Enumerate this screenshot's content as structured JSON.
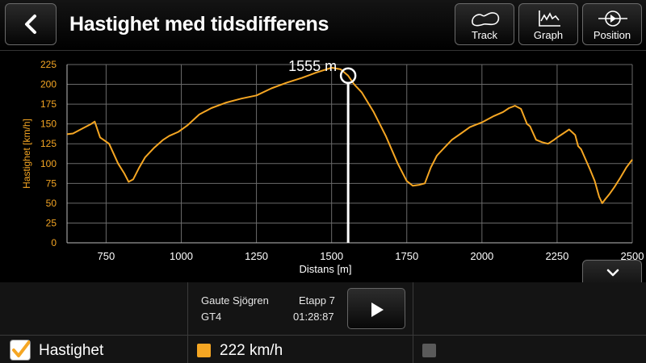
{
  "header": {
    "title": "Hastighet med tidsdifferens",
    "buttons": [
      {
        "label": "Track",
        "icon": "track-outline-icon"
      },
      {
        "label": "Graph",
        "icon": "graph-icon"
      },
      {
        "label": "Position",
        "icon": "position-icon"
      }
    ]
  },
  "chart_data": {
    "type": "line",
    "xlabel": "Distans [m]",
    "ylabel": "Hastighet [km/h]",
    "xlim": [
      620,
      2500
    ],
    "ylim": [
      0,
      225
    ],
    "x_ticks": [
      "750",
      "1000",
      "1250",
      "1500",
      "1750",
      "2000",
      "2250",
      "2500"
    ],
    "x_tick_values": [
      750,
      1000,
      1250,
      1500,
      1750,
      2000,
      2250,
      2500
    ],
    "y_ticks": [
      "0",
      "25",
      "50",
      "75",
      "100",
      "125",
      "150",
      "175",
      "200",
      "225"
    ],
    "y_tick_values": [
      0,
      25,
      50,
      75,
      100,
      125,
      150,
      175,
      200,
      225
    ],
    "grid": true,
    "series_color": "#f5a623",
    "cursor": {
      "x": 1555,
      "y": 211,
      "label": "1555 m"
    },
    "x": [
      620,
      640,
      660,
      680,
      700,
      712,
      730,
      760,
      790,
      810,
      825,
      840,
      860,
      880,
      910,
      940,
      960,
      990,
      1020,
      1060,
      1100,
      1150,
      1200,
      1250,
      1300,
      1350,
      1400,
      1450,
      1500,
      1530,
      1555,
      1575,
      1600,
      1640,
      1680,
      1720,
      1750,
      1770,
      1790,
      1810,
      1830,
      1850,
      1860,
      1880,
      1900,
      1930,
      1960,
      2000,
      2040,
      2070,
      2090,
      2110,
      2130,
      2150,
      2160,
      2180,
      2200,
      2220,
      2240,
      2250,
      2270,
      2290,
      2310,
      2320,
      2330,
      2345,
      2360,
      2375,
      2390,
      2400,
      2410,
      2425,
      2440,
      2460,
      2480,
      2500
    ],
    "y": [
      137,
      138,
      142,
      146,
      150,
      153,
      133,
      125,
      100,
      88,
      77,
      80,
      95,
      108,
      120,
      130,
      135,
      140,
      148,
      162,
      170,
      177,
      182,
      186,
      195,
      202,
      208,
      215,
      221,
      219,
      211,
      200,
      190,
      165,
      135,
      100,
      78,
      72,
      73,
      75,
      95,
      110,
      114,
      122,
      130,
      138,
      146,
      152,
      160,
      165,
      170,
      173,
      169,
      150,
      147,
      130,
      127,
      125,
      130,
      133,
      138,
      143,
      136,
      122,
      118,
      105,
      92,
      78,
      58,
      50,
      55,
      62,
      70,
      82,
      95,
      105
    ]
  },
  "driver": {
    "name": "Gaute Sjögren",
    "car": "GT4",
    "stage": "Etapp 7",
    "time": "01:28:87"
  },
  "legend": {
    "item_label": "Hastighet",
    "checked": true,
    "value_text": "222 km/h",
    "value_color": "#f5a623",
    "second_color": "#5a5a5a"
  }
}
